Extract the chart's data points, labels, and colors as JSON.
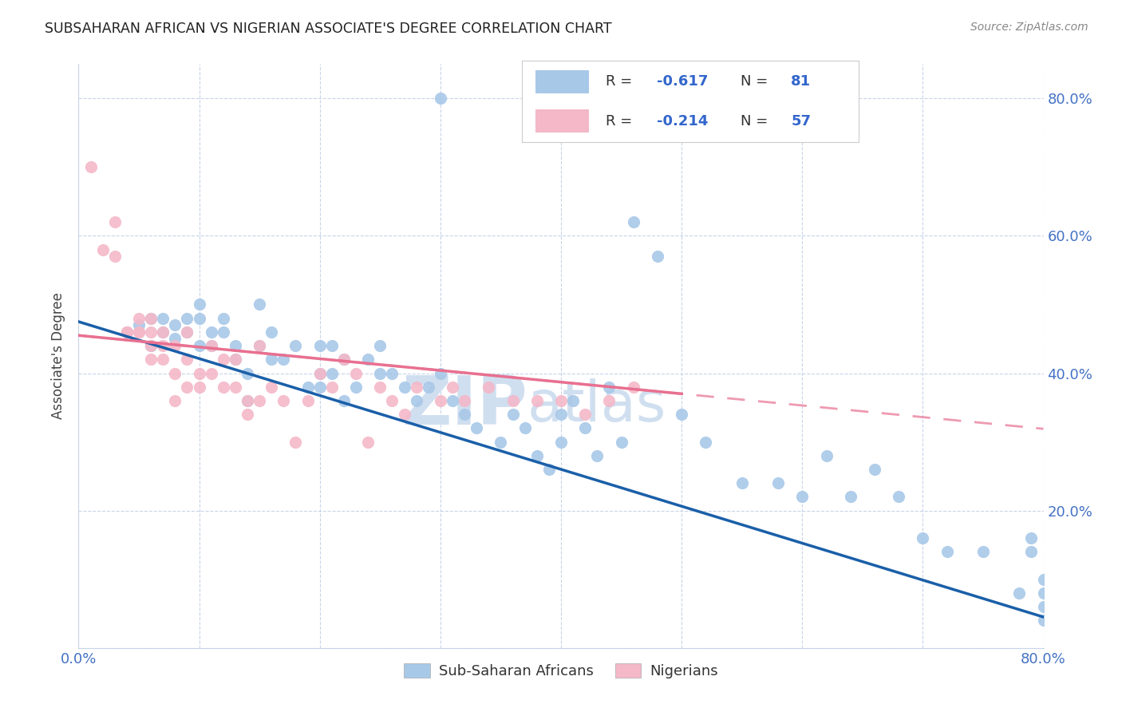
{
  "title": "SUBSAHARAN AFRICAN VS NIGERIAN ASSOCIATE'S DEGREE CORRELATION CHART",
  "source": "Source: ZipAtlas.com",
  "ylabel": "Associate's Degree",
  "xlim": [
    0.0,
    0.8
  ],
  "ylim": [
    0.0,
    0.85
  ],
  "blue_color": "#a8c8e8",
  "pink_color": "#f4b8c8",
  "blue_line_color": "#1a5fa8",
  "pink_line_color": "#e87090",
  "watermark_color": "#d0dff0",
  "label1": "Sub-Saharan Africans",
  "label2": "Nigerians",
  "blue_scatter_x": [
    0.3,
    0.04,
    0.05,
    0.06,
    0.06,
    0.07,
    0.07,
    0.08,
    0.08,
    0.09,
    0.09,
    0.1,
    0.1,
    0.1,
    0.11,
    0.11,
    0.12,
    0.12,
    0.13,
    0.13,
    0.14,
    0.14,
    0.15,
    0.15,
    0.16,
    0.16,
    0.17,
    0.18,
    0.19,
    0.2,
    0.2,
    0.2,
    0.21,
    0.21,
    0.22,
    0.22,
    0.23,
    0.24,
    0.25,
    0.25,
    0.26,
    0.27,
    0.28,
    0.29,
    0.3,
    0.31,
    0.32,
    0.33,
    0.35,
    0.36,
    0.37,
    0.38,
    0.39,
    0.4,
    0.4,
    0.41,
    0.42,
    0.43,
    0.44,
    0.45,
    0.46,
    0.48,
    0.5,
    0.52,
    0.55,
    0.58,
    0.6,
    0.62,
    0.64,
    0.66,
    0.68,
    0.7,
    0.72,
    0.75,
    0.78,
    0.79,
    0.79,
    0.8,
    0.8,
    0.8,
    0.8
  ],
  "blue_scatter_y": [
    0.8,
    0.46,
    0.47,
    0.48,
    0.44,
    0.48,
    0.46,
    0.47,
    0.45,
    0.48,
    0.46,
    0.5,
    0.48,
    0.44,
    0.46,
    0.44,
    0.48,
    0.46,
    0.42,
    0.44,
    0.36,
    0.4,
    0.44,
    0.5,
    0.42,
    0.46,
    0.42,
    0.44,
    0.38,
    0.4,
    0.44,
    0.38,
    0.44,
    0.4,
    0.42,
    0.36,
    0.38,
    0.42,
    0.44,
    0.4,
    0.4,
    0.38,
    0.36,
    0.38,
    0.4,
    0.36,
    0.34,
    0.32,
    0.3,
    0.34,
    0.32,
    0.28,
    0.26,
    0.34,
    0.3,
    0.36,
    0.32,
    0.28,
    0.38,
    0.3,
    0.62,
    0.57,
    0.34,
    0.3,
    0.24,
    0.24,
    0.22,
    0.28,
    0.22,
    0.26,
    0.22,
    0.16,
    0.14,
    0.14,
    0.08,
    0.16,
    0.14,
    0.1,
    0.08,
    0.06,
    0.04
  ],
  "pink_scatter_x": [
    0.01,
    0.02,
    0.03,
    0.03,
    0.04,
    0.04,
    0.05,
    0.05,
    0.05,
    0.06,
    0.06,
    0.06,
    0.06,
    0.07,
    0.07,
    0.07,
    0.08,
    0.08,
    0.08,
    0.09,
    0.09,
    0.09,
    0.1,
    0.1,
    0.11,
    0.11,
    0.12,
    0.12,
    0.13,
    0.13,
    0.14,
    0.14,
    0.15,
    0.15,
    0.16,
    0.17,
    0.18,
    0.19,
    0.2,
    0.21,
    0.22,
    0.23,
    0.24,
    0.25,
    0.26,
    0.27,
    0.28,
    0.3,
    0.31,
    0.32,
    0.34,
    0.36,
    0.38,
    0.4,
    0.42,
    0.44,
    0.46
  ],
  "pink_scatter_y": [
    0.7,
    0.58,
    0.62,
    0.57,
    0.46,
    0.46,
    0.46,
    0.48,
    0.46,
    0.48,
    0.46,
    0.44,
    0.42,
    0.46,
    0.44,
    0.42,
    0.44,
    0.4,
    0.36,
    0.46,
    0.42,
    0.38,
    0.4,
    0.38,
    0.44,
    0.4,
    0.42,
    0.38,
    0.42,
    0.38,
    0.34,
    0.36,
    0.44,
    0.36,
    0.38,
    0.36,
    0.3,
    0.36,
    0.4,
    0.38,
    0.42,
    0.4,
    0.3,
    0.38,
    0.36,
    0.34,
    0.38,
    0.36,
    0.38,
    0.36,
    0.38,
    0.36,
    0.36,
    0.36,
    0.34,
    0.36,
    0.38
  ],
  "blue_trend_x": [
    0.0,
    0.8
  ],
  "blue_trend_y": [
    0.475,
    0.045
  ],
  "pink_trend_x": [
    0.0,
    0.5
  ],
  "pink_trend_y": [
    0.455,
    0.37
  ]
}
